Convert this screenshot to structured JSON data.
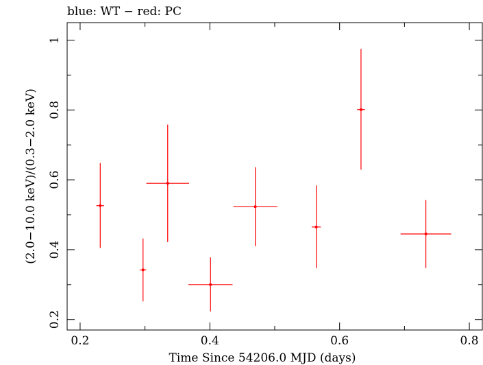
{
  "chart_data": {
    "type": "scatter",
    "title": "blue: WT − red: PC",
    "xlabel": "Time Since 54206.0 MJD (days)",
    "ylabel": "(2.0−10.0 keV)/(0.3−2.0 keV)",
    "xlim": [
      0.18,
      0.82
    ],
    "ylim": [
      0.17,
      1.05
    ],
    "x_ticks": [
      0.2,
      0.4,
      0.6,
      0.8
    ],
    "x_tick_labels": [
      "0.2",
      "0.4",
      "0.6",
      "0.8"
    ],
    "y_ticks": [
      0.2,
      0.4,
      0.6,
      0.8,
      1.0
    ],
    "y_tick_labels": [
      "0.2",
      "0.4",
      "0.6",
      "0.8",
      "1"
    ],
    "grid": false,
    "series": [
      {
        "color": "#ff0000",
        "points": [
          {
            "x": 0.231,
            "y": 0.526,
            "xerr": 0.006,
            "ylo": 0.405,
            "yhi": 0.648
          },
          {
            "x": 0.297,
            "y": 0.342,
            "xerr": 0.005,
            "ylo": 0.252,
            "yhi": 0.432
          },
          {
            "x": 0.335,
            "y": 0.59,
            "xerr": 0.033,
            "ylo": 0.422,
            "yhi": 0.758
          },
          {
            "x": 0.401,
            "y": 0.3,
            "xerr": 0.034,
            "ylo": 0.223,
            "yhi": 0.378
          },
          {
            "x": 0.47,
            "y": 0.523,
            "xerr": 0.034,
            "ylo": 0.41,
            "yhi": 0.636
          },
          {
            "x": 0.564,
            "y": 0.465,
            "xerr": 0.007,
            "ylo": 0.347,
            "yhi": 0.584
          },
          {
            "x": 0.633,
            "y": 0.801,
            "xerr": 0.006,
            "ylo": 0.629,
            "yhi": 0.975
          },
          {
            "x": 0.733,
            "y": 0.445,
            "xerr": 0.039,
            "ylo": 0.347,
            "yhi": 0.542
          }
        ]
      }
    ]
  }
}
